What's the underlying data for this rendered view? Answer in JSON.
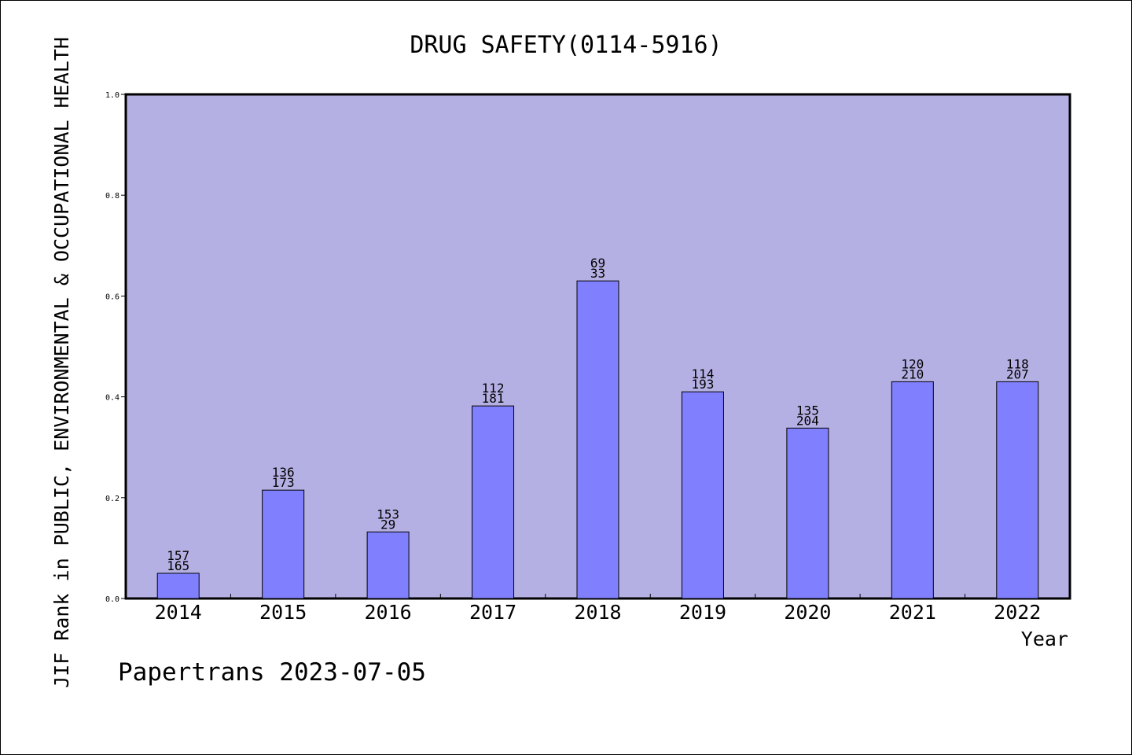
{
  "chart_data": {
    "type": "bar",
    "title": "DRUG SAFETY(0114-5916)",
    "xlabel": "Year",
    "ylabel": "JIF Rank in PUBLIC, ENVIRONMENTAL & OCCUPATIONAL HEALTH",
    "categories": [
      "2014",
      "2015",
      "2016",
      "2017",
      "2018",
      "2019",
      "2020",
      "2021",
      "2022"
    ],
    "values": [
      0.05,
      0.215,
      0.132,
      0.382,
      0.63,
      0.41,
      0.338,
      0.43,
      0.43
    ],
    "label_top": [
      "157",
      "136",
      "153",
      "112",
      "69",
      "114",
      "135",
      "120",
      "118"
    ],
    "label_bottom": [
      "165",
      "173",
      "29",
      "181",
      "33",
      "193",
      "204",
      "210",
      "207"
    ],
    "ylim": [
      0,
      1.0
    ],
    "yticks": [
      "0.0",
      "0.2",
      "0.4",
      "0.6",
      "0.8",
      "1.0"
    ],
    "ytick_values": [
      0,
      0.2,
      0.4,
      0.6,
      0.8,
      1.0
    ],
    "plot_background": "#b5b0e3",
    "bar_color": "#8080ff",
    "footer": "Papertrans 2023-07-05"
  }
}
